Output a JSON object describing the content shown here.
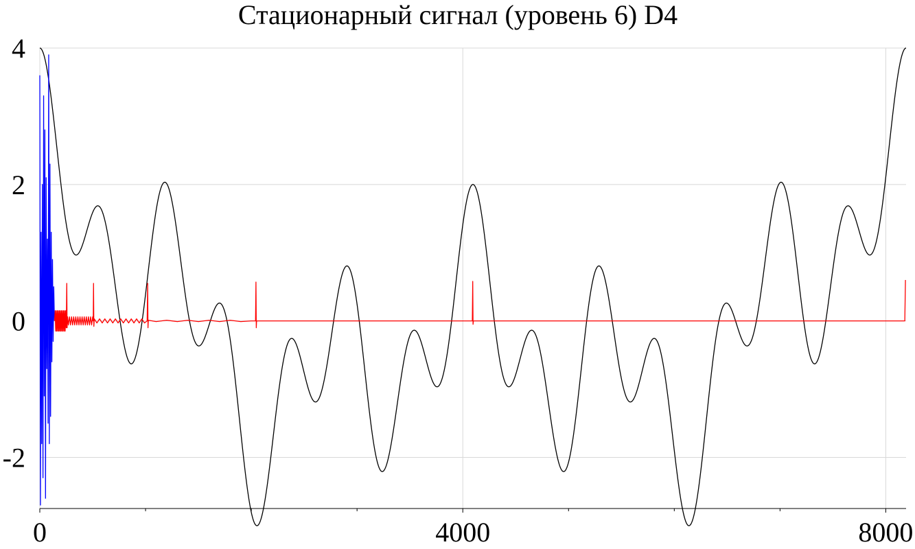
{
  "chart_data": {
    "type": "line",
    "title": "Стационарный сигнал (уровень 6) D4",
    "xlabel": "",
    "ylabel": "",
    "xlim": [
      0,
      8192
    ],
    "ylim": [
      -2.75,
      4
    ],
    "grid": true,
    "x_ticks": [
      0,
      4000,
      8000
    ],
    "x_tick_labels": [
      "0",
      "4000",
      "8000"
    ],
    "x_minor_ticks": [
      1000,
      2000,
      3000,
      5000,
      6000,
      7000
    ],
    "y_ticks": [
      -2,
      0,
      2,
      4
    ],
    "y_tick_labels": [
      "-2",
      "0",
      "2",
      "4"
    ],
    "colors": {
      "signal": "#000000",
      "coefficients": "#0000ff",
      "reconstruction": "#ff0000"
    },
    "series": [
      {
        "color": "#000000",
        "kind": "analytic",
        "formula": "sum of cosines",
        "components": [
          {
            "amplitude": 1.0,
            "period": 8192,
            "phase": 0
          },
          {
            "amplitude": 1.0,
            "period": 4096,
            "phase": 0
          },
          {
            "amplitude": 1.0,
            "period": 1365.33,
            "phase": 0
          },
          {
            "amplitude": 1.0,
            "period": 585.14,
            "phase": 0
          }
        ],
        "x_range": [
          0,
          8192
        ]
      },
      {
        "color": "#0000ff",
        "kind": "points",
        "points": [
          [
            0,
            3.6
          ],
          [
            6,
            -2.7
          ],
          [
            12,
            1.3
          ],
          [
            18,
            -1.8
          ],
          [
            24,
            2.0
          ],
          [
            30,
            -2.3
          ],
          [
            36,
            3.3
          ],
          [
            42,
            -1.1
          ],
          [
            48,
            2.8
          ],
          [
            54,
            -2.6
          ],
          [
            60,
            2.1
          ],
          [
            66,
            -0.7
          ],
          [
            72,
            1.2
          ],
          [
            78,
            -1.5
          ],
          [
            84,
            3.9
          ],
          [
            90,
            -1.8
          ],
          [
            96,
            2.3
          ],
          [
            102,
            -1.4
          ],
          [
            108,
            1.3
          ],
          [
            114,
            -0.6
          ],
          [
            120,
            0.9
          ],
          [
            126,
            -0.3
          ],
          [
            132,
            0.5
          ],
          [
            138,
            0.0
          ]
        ]
      },
      {
        "color": "#ff0000",
        "kind": "points",
        "points": [
          [
            140,
            0.0
          ],
          [
            145,
            0.15
          ],
          [
            150,
            -0.15
          ],
          [
            155,
            0.15
          ],
          [
            160,
            -0.15
          ],
          [
            165,
            0.15
          ],
          [
            170,
            -0.15
          ],
          [
            175,
            0.15
          ],
          [
            180,
            -0.15
          ],
          [
            185,
            0.15
          ],
          [
            190,
            -0.15
          ],
          [
            195,
            0.15
          ],
          [
            200,
            -0.15
          ],
          [
            205,
            0.15
          ],
          [
            210,
            -0.15
          ],
          [
            215,
            0.15
          ],
          [
            220,
            -0.15
          ],
          [
            225,
            0.15
          ],
          [
            230,
            -0.15
          ],
          [
            235,
            0.15
          ],
          [
            240,
            -0.15
          ],
          [
            245,
            0.15
          ],
          [
            250,
            -0.1
          ],
          [
            255,
            0.55
          ],
          [
            258,
            -0.1
          ],
          [
            262,
            0.06
          ],
          [
            270,
            -0.06
          ],
          [
            280,
            0.06
          ],
          [
            290,
            -0.06
          ],
          [
            300,
            0.06
          ],
          [
            310,
            -0.06
          ],
          [
            320,
            0.06
          ],
          [
            330,
            -0.06
          ],
          [
            340,
            0.06
          ],
          [
            350,
            -0.06
          ],
          [
            360,
            0.06
          ],
          [
            370,
            -0.06
          ],
          [
            380,
            0.06
          ],
          [
            390,
            -0.06
          ],
          [
            400,
            0.06
          ],
          [
            410,
            -0.06
          ],
          [
            420,
            0.06
          ],
          [
            430,
            -0.06
          ],
          [
            440,
            0.06
          ],
          [
            450,
            -0.06
          ],
          [
            460,
            0.06
          ],
          [
            470,
            -0.06
          ],
          [
            480,
            0.06
          ],
          [
            490,
            -0.06
          ],
          [
            500,
            0.06
          ],
          [
            505,
            0.0
          ],
          [
            508,
            0.55
          ],
          [
            511,
            -0.08
          ],
          [
            515,
            0.03
          ],
          [
            540,
            -0.03
          ],
          [
            565,
            0.03
          ],
          [
            590,
            -0.03
          ],
          [
            615,
            0.03
          ],
          [
            640,
            -0.03
          ],
          [
            665,
            0.03
          ],
          [
            690,
            -0.03
          ],
          [
            715,
            0.03
          ],
          [
            740,
            -0.03
          ],
          [
            765,
            0.03
          ],
          [
            790,
            -0.03
          ],
          [
            815,
            0.03
          ],
          [
            840,
            -0.03
          ],
          [
            865,
            0.03
          ],
          [
            890,
            -0.03
          ],
          [
            915,
            0.03
          ],
          [
            940,
            -0.03
          ],
          [
            965,
            0.03
          ],
          [
            990,
            -0.03
          ],
          [
            1015,
            0.0
          ],
          [
            1020,
            0.55
          ],
          [
            1023,
            -0.1
          ],
          [
            1026,
            0.01
          ],
          [
            1100,
            -0.01
          ],
          [
            1200,
            0.01
          ],
          [
            1300,
            -0.01
          ],
          [
            1400,
            0.01
          ],
          [
            1500,
            -0.01
          ],
          [
            1600,
            0.01
          ],
          [
            1700,
            -0.01
          ],
          [
            1800,
            0.01
          ],
          [
            1900,
            -0.01
          ],
          [
            2000,
            0.0
          ],
          [
            2040,
            0.0
          ],
          [
            2044,
            0.57
          ],
          [
            2047,
            -0.1
          ],
          [
            2050,
            0.0
          ],
          [
            4090,
            0.0
          ],
          [
            4094,
            0.58
          ],
          [
            4097,
            -0.05
          ],
          [
            4100,
            0.0
          ],
          [
            8180,
            0.0
          ],
          [
            8186,
            0.6
          ]
        ]
      }
    ]
  }
}
